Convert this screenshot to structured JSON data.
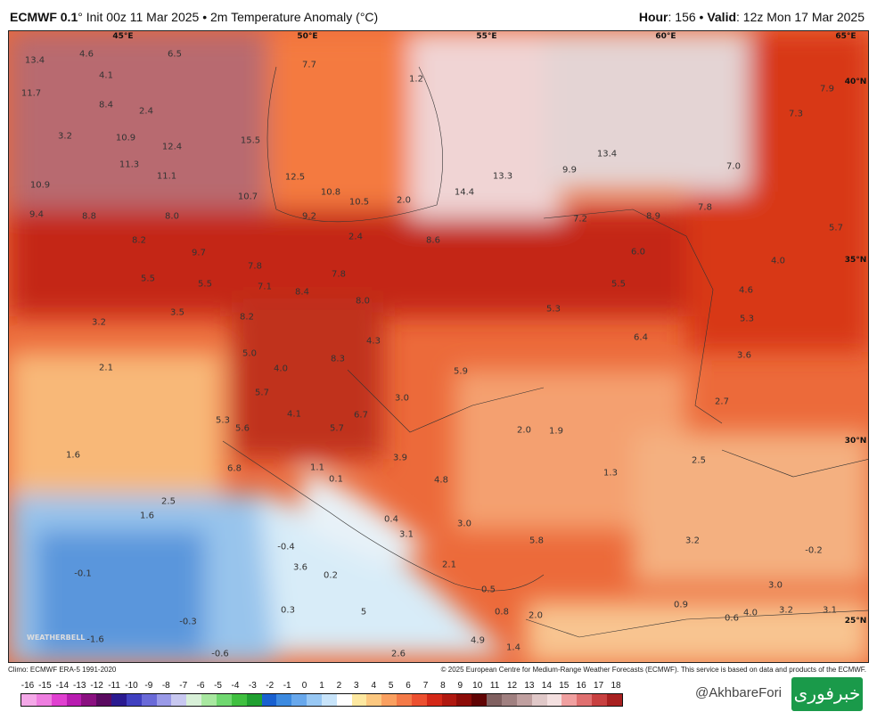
{
  "header": {
    "model": "ECMWF 0.1",
    "model_suffix": "° Init 00z 11 Mar 2025 • 2m Temperature Anomaly (°C)",
    "hour_label": "Hour",
    "hour": ": 156 • ",
    "valid_label": "Valid",
    "valid": ": 12z Mon 17 Mar 2025"
  },
  "axes": {
    "lon": [
      "45°E",
      "50°E",
      "55°E",
      "60°E",
      "65°E"
    ],
    "lat": [
      "40°N",
      "35°N",
      "30°N",
      "25°N"
    ]
  },
  "labels": [
    "13.4",
    "4.6",
    "6.5",
    "7.7",
    "1.2",
    "11.7",
    "4.1",
    "8.4",
    "2.4",
    "3.2",
    "10.9",
    "12.4",
    "15.5",
    "11.1",
    "11.3",
    "10.9",
    "12.5",
    "10.8",
    "10.5",
    "2.0",
    "14.4",
    "13.3",
    "9.9",
    "13.4",
    "7.9",
    "7.3",
    "7.0",
    "10.7",
    "9.4",
    "8.8",
    "8.0",
    "9.2",
    "7.2",
    "8.9",
    "7.8",
    "2.4",
    "8.6",
    "8.2",
    "5.7",
    "9.7",
    "6.0",
    "4.0",
    "7.8",
    "7.8",
    "5.5",
    "5.5",
    "7.1",
    "8.4",
    "8.0",
    "5.5",
    "4.6",
    "5.3",
    "3.2",
    "3.5",
    "8.2",
    "5.3",
    "6.4",
    "4.3",
    "3.6",
    "2.1",
    "5.0",
    "4.0",
    "8.3",
    "5.9",
    "5.7",
    "3.0",
    "2.7",
    "4.1",
    "6.7",
    "5.3",
    "5.6",
    "5.7",
    "2.0",
    "1.9",
    "1.6",
    "3.9",
    "6.8",
    "1.1",
    "0.1",
    "4.8",
    "1.3",
    "2.5",
    "2.5",
    "1.6",
    "0.4",
    "3.0",
    "3.1",
    "5.8",
    "3.2",
    "-0.2",
    "-0.4",
    "3.6",
    "0.2",
    "2.1",
    "-0.1",
    "0.5",
    "3.0",
    "0.3",
    "5",
    "0.8",
    "2.0",
    "0.9",
    "0.6",
    "4.0",
    "3.2",
    "3.1",
    "-0.3",
    "-1.6",
    "4.9",
    "1.4",
    "-0.6",
    "2.6"
  ],
  "logo_text": "WEATHERBELL",
  "footer": {
    "climo": "Climo: ECMWF ERA-5 1991-2020",
    "copyright": "© 2025 European Centre for Medium-Range Weather Forecasts (ECMWF). This service is based on data and products of the ECMWF."
  },
  "colorbar": {
    "ticks": [
      "-16",
      "-15",
      "-14",
      "-13",
      "-12",
      "-11",
      "-10",
      "-9",
      "-8",
      "-7",
      "-6",
      "-5",
      "-4",
      "-3",
      "-2",
      "-1",
      "0",
      "1",
      "2",
      "3",
      "4",
      "5",
      "6",
      "7",
      "8",
      "9",
      "10",
      "11",
      "12",
      "13",
      "14",
      "15",
      "16",
      "17",
      "18"
    ],
    "colors": [
      "#f4a8e8",
      "#ee7ee0",
      "#e040d0",
      "#b81cb0",
      "#8a1080",
      "#5a0a60",
      "#2a1a90",
      "#4040c0",
      "#6a6ad8",
      "#9a9ae8",
      "#c8c8f0",
      "#d8f0d8",
      "#a8e8a0",
      "#70d870",
      "#40c040",
      "#20a030",
      "#1860d0",
      "#3c8ae0",
      "#68a8ec",
      "#98c8f4",
      "#c8e4fa",
      "#ffffff",
      "#fde8a0",
      "#fcc880",
      "#faa060",
      "#f47a48",
      "#ec5030",
      "#d42818",
      "#b01810",
      "#8c0c08",
      "#600404",
      "#806060",
      "#a08080",
      "#c0a0a0",
      "#e0c8c8",
      "#f4e0e0",
      "#f0a0a0",
      "#e07070",
      "#c84040",
      "#a82020"
    ]
  },
  "watermark": {
    "handle": "@AkhbareFori",
    "logo": "خبرفوری"
  }
}
